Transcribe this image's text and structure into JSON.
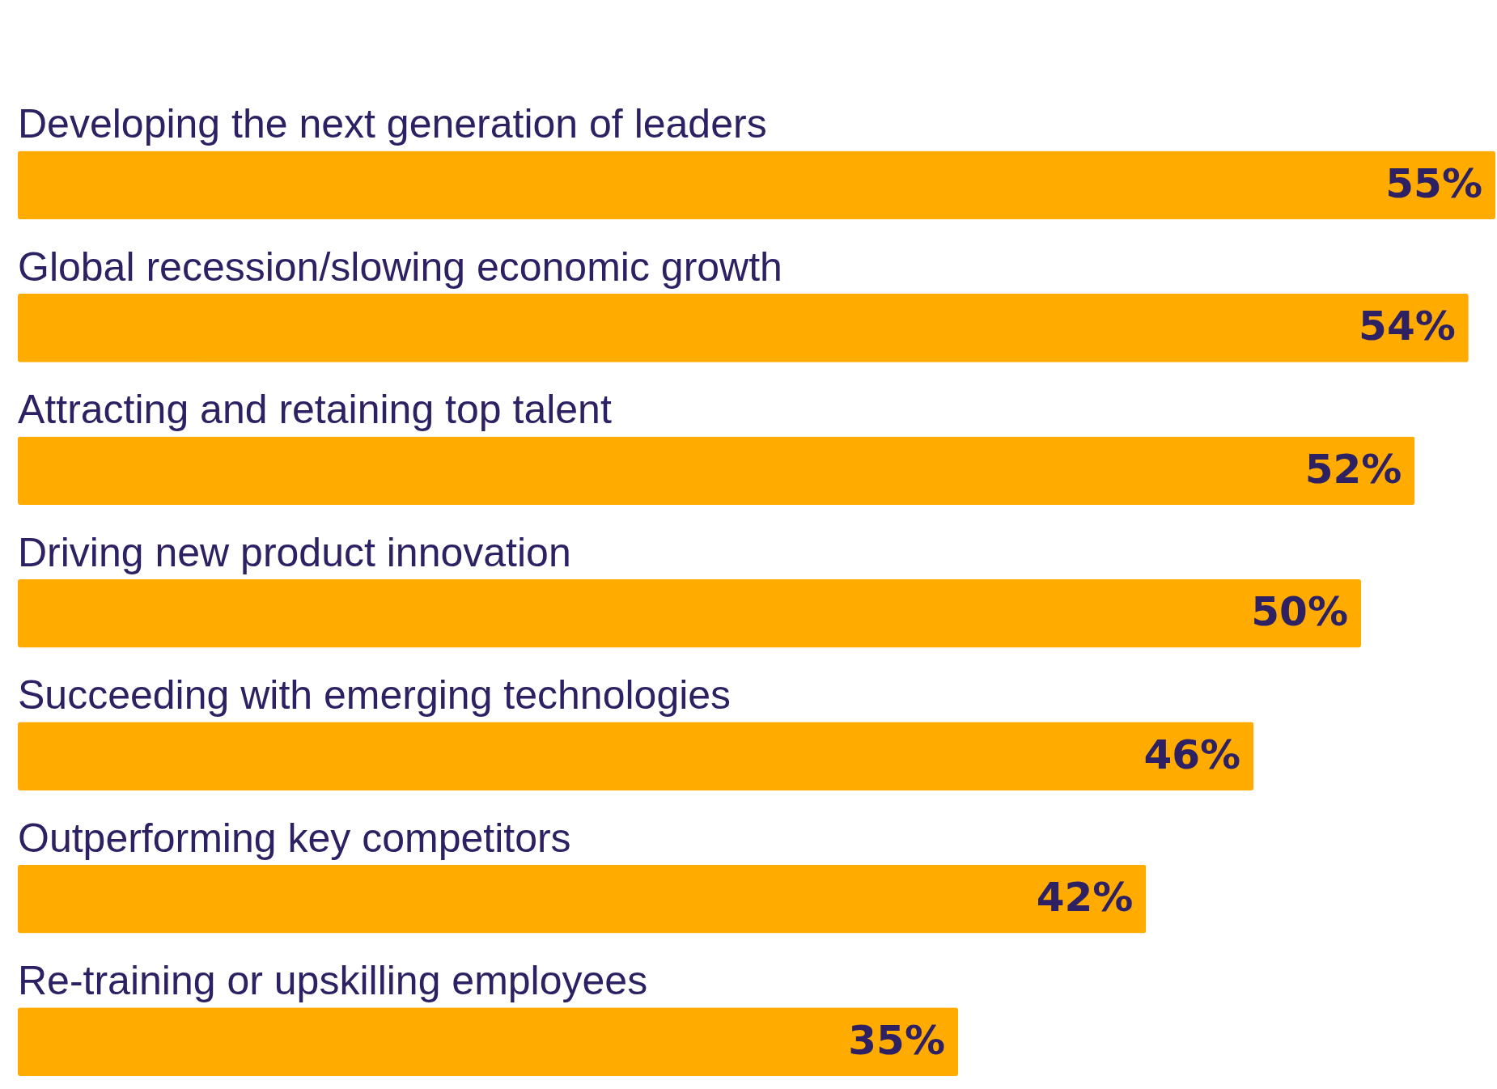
{
  "chart_data": {
    "type": "bar",
    "orientation": "horizontal",
    "categories": [
      "Developing the next generation of leaders",
      "Global recession/slowing economic growth",
      "Attracting and retaining top talent",
      "Driving new product innovation",
      "Succeeding with emerging technologies",
      "Outperforming key competitors",
      "Re-training or upskilling employees"
    ],
    "values": [
      55,
      54,
      52,
      50,
      46,
      42,
      35
    ],
    "value_labels": [
      "55%",
      "54%",
      "52%",
      "50%",
      "46%",
      "42%",
      "35%"
    ],
    "color": "#ffab00"
  }
}
